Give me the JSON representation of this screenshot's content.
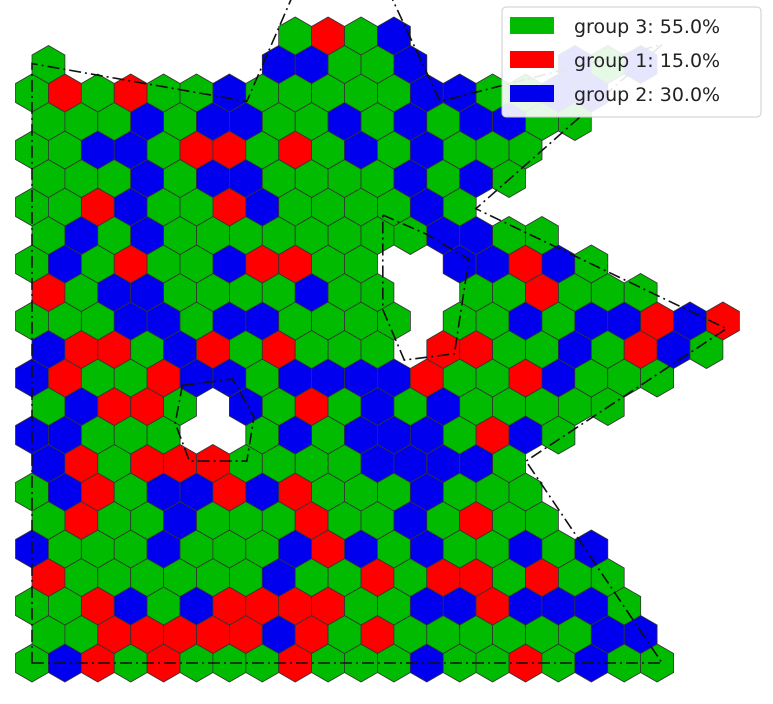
{
  "chart_data": {
    "type": "hexbin",
    "grid_on": false,
    "legend_position": "top-right",
    "legend": [
      {
        "key": "group3",
        "label": "group 3: 55.0%",
        "color": "#00bb00"
      },
      {
        "key": "group1",
        "label": "group 1: 15.0%",
        "color": "#ff0000"
      },
      {
        "key": "group2",
        "label": "group 2: 30.0%",
        "color": "#0000ee"
      }
    ],
    "groups": [
      {
        "name": "group 3",
        "share_percent": 55.0,
        "color": "#00bb00"
      },
      {
        "name": "group 1",
        "share_percent": 15.0,
        "color": "#ff0000"
      },
      {
        "name": "group 2",
        "share_percent": 30.0,
        "color": "#0000ee"
      }
    ],
    "outline": {
      "style": "dash-dot",
      "color": "#111111",
      "outer_boundary": [
        [
          0.0,
          0.0
        ],
        [
          0.88,
          0.0
        ],
        [
          0.69,
          0.32
        ],
        [
          0.97,
          0.53
        ],
        [
          0.62,
          0.72
        ],
        [
          0.88,
          0.98
        ],
        [
          0.57,
          0.89
        ],
        [
          0.43,
          1.23
        ],
        [
          0.3,
          0.89
        ],
        [
          0.0,
          0.95
        ]
      ],
      "holes": [
        [
          [
            0.49,
            0.71
          ],
          [
            0.55,
            0.68
          ],
          [
            0.61,
            0.64
          ],
          [
            0.59,
            0.49
          ],
          [
            0.52,
            0.48
          ],
          [
            0.49,
            0.56
          ]
        ],
        [
          [
            0.21,
            0.44
          ],
          [
            0.28,
            0.45
          ],
          [
            0.31,
            0.39
          ],
          [
            0.3,
            0.32
          ],
          [
            0.22,
            0.32
          ],
          [
            0.2,
            0.38
          ]
        ]
      ]
    }
  }
}
